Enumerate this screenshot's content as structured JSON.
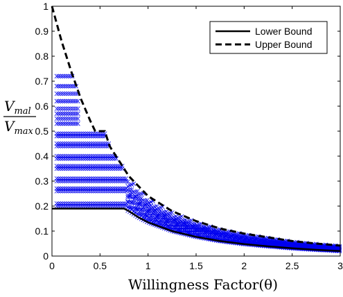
{
  "chart_data": {
    "type": "scatter",
    "title": "",
    "xlabel": "Willingness Factor(θ)",
    "ylabel": {
      "numerator": "V",
      "numerator_sub": "mal",
      "denominator": "V",
      "denominator_sub": "max"
    },
    "xlim": [
      0,
      3
    ],
    "ylim": [
      0,
      1
    ],
    "x_ticks": [
      "0",
      "0.5",
      "1",
      "1.5",
      "2",
      "2.5",
      "3"
    ],
    "y_ticks": [
      "0",
      "0.1",
      "0.2",
      "0.3",
      "0.4",
      "0.5",
      "0.6",
      "0.7",
      "0.8",
      "0.9",
      "1"
    ],
    "grid": false,
    "legend_position": "top-right",
    "colors": {
      "lines": "#000000",
      "markers": "#0000ee"
    },
    "series": [
      {
        "name": "Lower Bound",
        "style": "solid",
        "x": [
          0,
          0.25,
          0.5,
          0.75,
          0.8,
          0.9,
          1.0,
          1.25,
          1.5,
          1.75,
          2.0,
          2.25,
          2.5,
          2.75,
          3.0
        ],
        "y": [
          0.19,
          0.19,
          0.19,
          0.19,
          0.18,
          0.155,
          0.135,
          0.1,
          0.077,
          0.06,
          0.048,
          0.039,
          0.031,
          0.025,
          0.02
        ]
      },
      {
        "name": "Upper Bound",
        "style": "dashed",
        "x": [
          0,
          0.1,
          0.2,
          0.3,
          0.4,
          0.45,
          0.55,
          0.6,
          0.7,
          0.8,
          0.9,
          1.0,
          1.25,
          1.5,
          1.75,
          2.0,
          2.25,
          2.5,
          2.75,
          3.0
        ],
        "y": [
          1.0,
          0.86,
          0.74,
          0.63,
          0.54,
          0.5,
          0.5,
          0.44,
          0.38,
          0.32,
          0.28,
          0.24,
          0.18,
          0.14,
          0.11,
          0.09,
          0.075,
          0.06,
          0.05,
          0.042
        ]
      }
    ],
    "scatter_points": {
      "marker": "x",
      "description": "simulated outcomes lying between lower and upper bounds for theta from 0.05 to 3"
    }
  }
}
